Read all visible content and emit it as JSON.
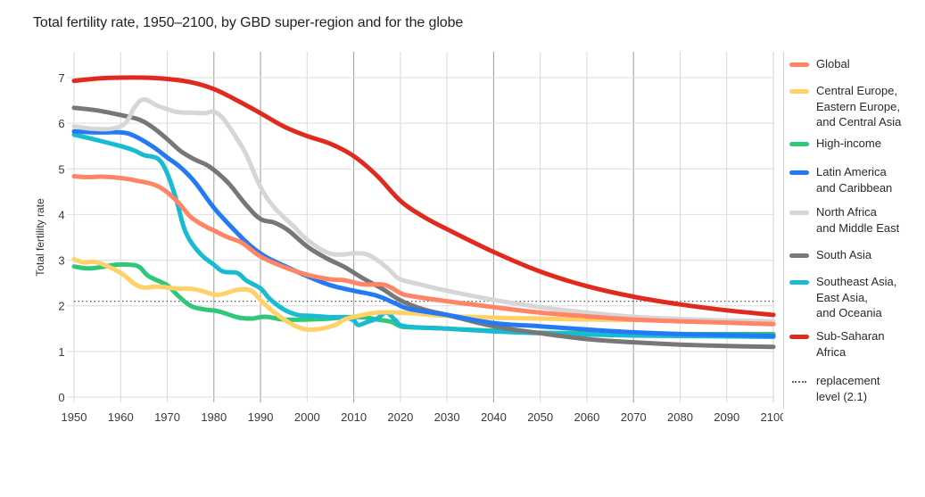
{
  "chart_data": {
    "type": "line",
    "title": "Total fertility rate, 1950–2100, by GBD super-region and for the globe",
    "xlabel": "",
    "ylabel": "Total fertility rate",
    "xlim": [
      1950,
      2100
    ],
    "ylim": [
      0,
      7
    ],
    "x_ticks": [
      1950,
      1960,
      1970,
      1980,
      1990,
      2000,
      2010,
      2020,
      2030,
      2040,
      2050,
      2060,
      2070,
      2080,
      2090,
      2100
    ],
    "x_tick_labels": [
      "1950",
      "1960",
      "1970",
      "1980",
      "1990",
      "2000",
      "2010",
      "2020",
      "2030",
      "2040",
      "2050",
      "2060",
      "2070",
      "2080",
      "2090",
      "2100"
    ],
    "y_ticks": [
      0,
      1,
      2,
      3,
      4,
      5,
      6,
      7
    ],
    "y_tick_labels": [
      "0",
      "1",
      "2",
      "3",
      "4",
      "5",
      "6",
      "7"
    ],
    "grid": true,
    "legend_position": "right",
    "reference_line": {
      "name": "replacement level (2.1)",
      "label": "replacement\nlevel (2.1)",
      "value": 2.1,
      "style": "dotted",
      "color": "#555555"
    },
    "series": [
      {
        "name": "Global",
        "label": "Global",
        "color": "#FF8566",
        "points": [
          [
            1950,
            4.84
          ],
          [
            1953,
            4.82
          ],
          [
            1956,
            4.83
          ],
          [
            1960,
            4.8
          ],
          [
            1963,
            4.75
          ],
          [
            1968,
            4.62
          ],
          [
            1972,
            4.3
          ],
          [
            1975,
            3.95
          ],
          [
            1978,
            3.75
          ],
          [
            1980,
            3.65
          ],
          [
            1983,
            3.5
          ],
          [
            1986,
            3.38
          ],
          [
            1990,
            3.08
          ],
          [
            1995,
            2.85
          ],
          [
            2000,
            2.68
          ],
          [
            2005,
            2.58
          ],
          [
            2008,
            2.56
          ],
          [
            2012,
            2.47
          ],
          [
            2016,
            2.47
          ],
          [
            2018,
            2.4
          ],
          [
            2020,
            2.28
          ],
          [
            2022,
            2.22
          ],
          [
            2030,
            2.1
          ],
          [
            2040,
            1.97
          ],
          [
            2050,
            1.85
          ],
          [
            2060,
            1.77
          ],
          [
            2070,
            1.7
          ],
          [
            2080,
            1.66
          ],
          [
            2090,
            1.63
          ],
          [
            2100,
            1.6
          ]
        ]
      },
      {
        "name": "Central Europe, Eastern Europe, and Central Asia",
        "label": "Central Europe,\nEastern Europe,\nand Central Asia",
        "color": "#FFD166",
        "points": [
          [
            1950,
            3.02
          ],
          [
            1952,
            2.95
          ],
          [
            1955,
            2.95
          ],
          [
            1960,
            2.72
          ],
          [
            1963,
            2.48
          ],
          [
            1965,
            2.4
          ],
          [
            1968,
            2.42
          ],
          [
            1972,
            2.38
          ],
          [
            1976,
            2.36
          ],
          [
            1980,
            2.25
          ],
          [
            1982,
            2.26
          ],
          [
            1985,
            2.35
          ],
          [
            1988,
            2.33
          ],
          [
            1990,
            2.12
          ],
          [
            1993,
            1.85
          ],
          [
            1997,
            1.58
          ],
          [
            2000,
            1.48
          ],
          [
            2003,
            1.5
          ],
          [
            2006,
            1.58
          ],
          [
            2008,
            1.7
          ],
          [
            2011,
            1.78
          ],
          [
            2015,
            1.85
          ],
          [
            2020,
            1.85
          ],
          [
            2030,
            1.78
          ],
          [
            2040,
            1.74
          ],
          [
            2050,
            1.72
          ],
          [
            2060,
            1.7
          ],
          [
            2070,
            1.69
          ],
          [
            2080,
            1.68
          ],
          [
            2090,
            1.67
          ],
          [
            2100,
            1.66
          ]
        ]
      },
      {
        "name": "High-income",
        "label": "High-income",
        "color": "#2FC77A",
        "points": [
          [
            1950,
            2.86
          ],
          [
            1953,
            2.82
          ],
          [
            1956,
            2.85
          ],
          [
            1959,
            2.9
          ],
          [
            1962,
            2.9
          ],
          [
            1964,
            2.85
          ],
          [
            1966,
            2.65
          ],
          [
            1970,
            2.45
          ],
          [
            1972,
            2.25
          ],
          [
            1975,
            2.0
          ],
          [
            1978,
            1.92
          ],
          [
            1981,
            1.88
          ],
          [
            1985,
            1.75
          ],
          [
            1988,
            1.72
          ],
          [
            1991,
            1.76
          ],
          [
            1995,
            1.7
          ],
          [
            2000,
            1.7
          ],
          [
            2005,
            1.72
          ],
          [
            2008,
            1.75
          ],
          [
            2012,
            1.75
          ],
          [
            2015,
            1.7
          ],
          [
            2018,
            1.65
          ],
          [
            2020,
            1.55
          ],
          [
            2022,
            1.53
          ],
          [
            2030,
            1.5
          ],
          [
            2040,
            1.45
          ],
          [
            2050,
            1.41
          ],
          [
            2060,
            1.4
          ],
          [
            2070,
            1.39
          ],
          [
            2080,
            1.38
          ],
          [
            2090,
            1.38
          ],
          [
            2100,
            1.38
          ]
        ]
      },
      {
        "name": "Latin America and Caribbean",
        "label": "Latin America\nand Caribbean",
        "color": "#2479F4",
        "points": [
          [
            1950,
            5.82
          ],
          [
            1955,
            5.8
          ],
          [
            1960,
            5.8
          ],
          [
            1963,
            5.72
          ],
          [
            1967,
            5.48
          ],
          [
            1970,
            5.25
          ],
          [
            1973,
            5.02
          ],
          [
            1976,
            4.7
          ],
          [
            1980,
            4.15
          ],
          [
            1984,
            3.7
          ],
          [
            1988,
            3.3
          ],
          [
            1991,
            3.08
          ],
          [
            1995,
            2.88
          ],
          [
            2000,
            2.65
          ],
          [
            2005,
            2.45
          ],
          [
            2010,
            2.33
          ],
          [
            2015,
            2.22
          ],
          [
            2019,
            2.05
          ],
          [
            2022,
            1.93
          ],
          [
            2030,
            1.8
          ],
          [
            2040,
            1.62
          ],
          [
            2050,
            1.55
          ],
          [
            2060,
            1.48
          ],
          [
            2070,
            1.42
          ],
          [
            2080,
            1.38
          ],
          [
            2090,
            1.36
          ],
          [
            2100,
            1.34
          ]
        ]
      },
      {
        "name": "North Africa and Middle East",
        "label": "North Africa\nand Middle East",
        "color": "#D6D6D6",
        "points": [
          [
            1950,
            5.93
          ],
          [
            1954,
            5.88
          ],
          [
            1958,
            5.88
          ],
          [
            1961,
            6.0
          ],
          [
            1963,
            6.35
          ],
          [
            1965,
            6.52
          ],
          [
            1968,
            6.38
          ],
          [
            1972,
            6.25
          ],
          [
            1976,
            6.23
          ],
          [
            1978,
            6.22
          ],
          [
            1980,
            6.25
          ],
          [
            1982,
            6.1
          ],
          [
            1985,
            5.65
          ],
          [
            1987,
            5.3
          ],
          [
            1990,
            4.6
          ],
          [
            1993,
            4.15
          ],
          [
            1997,
            3.75
          ],
          [
            2000,
            3.45
          ],
          [
            2004,
            3.18
          ],
          [
            2007,
            3.12
          ],
          [
            2010,
            3.15
          ],
          [
            2013,
            3.12
          ],
          [
            2016,
            2.93
          ],
          [
            2018,
            2.75
          ],
          [
            2020,
            2.58
          ],
          [
            2025,
            2.45
          ],
          [
            2030,
            2.33
          ],
          [
            2040,
            2.13
          ],
          [
            2050,
            1.97
          ],
          [
            2060,
            1.85
          ],
          [
            2070,
            1.76
          ],
          [
            2080,
            1.71
          ],
          [
            2090,
            1.68
          ],
          [
            2100,
            1.66
          ]
        ]
      },
      {
        "name": "South Asia",
        "label": "South Asia",
        "color": "#777777",
        "points": [
          [
            1950,
            6.34
          ],
          [
            1955,
            6.28
          ],
          [
            1960,
            6.18
          ],
          [
            1964,
            6.08
          ],
          [
            1967,
            5.9
          ],
          [
            1970,
            5.65
          ],
          [
            1973,
            5.38
          ],
          [
            1976,
            5.2
          ],
          [
            1979,
            5.05
          ],
          [
            1983,
            4.7
          ],
          [
            1987,
            4.2
          ],
          [
            1990,
            3.9
          ],
          [
            1993,
            3.82
          ],
          [
            1996,
            3.65
          ],
          [
            2000,
            3.3
          ],
          [
            2004,
            3.05
          ],
          [
            2008,
            2.85
          ],
          [
            2012,
            2.6
          ],
          [
            2016,
            2.38
          ],
          [
            2020,
            2.12
          ],
          [
            2025,
            1.92
          ],
          [
            2030,
            1.8
          ],
          [
            2040,
            1.55
          ],
          [
            2050,
            1.4
          ],
          [
            2060,
            1.27
          ],
          [
            2070,
            1.2
          ],
          [
            2080,
            1.15
          ],
          [
            2090,
            1.12
          ],
          [
            2100,
            1.1
          ]
        ]
      },
      {
        "name": "Southeast Asia, East Asia, and Oceania",
        "label": "Southeast Asia,\nEast Asia,\nand Oceania",
        "color": "#18BBD1",
        "points": [
          [
            1950,
            5.75
          ],
          [
            1955,
            5.63
          ],
          [
            1960,
            5.5
          ],
          [
            1963,
            5.4
          ],
          [
            1965,
            5.3
          ],
          [
            1968,
            5.22
          ],
          [
            1970,
            4.9
          ],
          [
            1972,
            4.3
          ],
          [
            1974,
            3.6
          ],
          [
            1977,
            3.15
          ],
          [
            1980,
            2.9
          ],
          [
            1982,
            2.75
          ],
          [
            1985,
            2.72
          ],
          [
            1987,
            2.55
          ],
          [
            1990,
            2.38
          ],
          [
            1992,
            2.15
          ],
          [
            1995,
            1.92
          ],
          [
            1998,
            1.8
          ],
          [
            2001,
            1.78
          ],
          [
            2005,
            1.75
          ],
          [
            2008,
            1.75
          ],
          [
            2010,
            1.68
          ],
          [
            2011,
            1.58
          ],
          [
            2013,
            1.65
          ],
          [
            2015,
            1.72
          ],
          [
            2017,
            1.85
          ],
          [
            2019,
            1.68
          ],
          [
            2021,
            1.55
          ],
          [
            2030,
            1.5
          ],
          [
            2040,
            1.44
          ],
          [
            2050,
            1.4
          ],
          [
            2060,
            1.37
          ],
          [
            2070,
            1.35
          ],
          [
            2080,
            1.34
          ],
          [
            2090,
            1.33
          ],
          [
            2100,
            1.32
          ]
        ]
      },
      {
        "name": "Sub-Saharan Africa",
        "label": "Sub-Saharan\nAfrica",
        "color": "#E12A1E",
        "points": [
          [
            1950,
            6.93
          ],
          [
            1955,
            6.98
          ],
          [
            1960,
            7.0
          ],
          [
            1965,
            7.0
          ],
          [
            1970,
            6.97
          ],
          [
            1975,
            6.9
          ],
          [
            1980,
            6.75
          ],
          [
            1985,
            6.5
          ],
          [
            1990,
            6.22
          ],
          [
            1995,
            5.93
          ],
          [
            2000,
            5.72
          ],
          [
            2005,
            5.55
          ],
          [
            2010,
            5.28
          ],
          [
            2015,
            4.85
          ],
          [
            2020,
            4.3
          ],
          [
            2025,
            3.95
          ],
          [
            2030,
            3.68
          ],
          [
            2040,
            3.18
          ],
          [
            2050,
            2.75
          ],
          [
            2060,
            2.43
          ],
          [
            2070,
            2.2
          ],
          [
            2080,
            2.03
          ],
          [
            2090,
            1.9
          ],
          [
            2100,
            1.8
          ]
        ]
      }
    ]
  }
}
